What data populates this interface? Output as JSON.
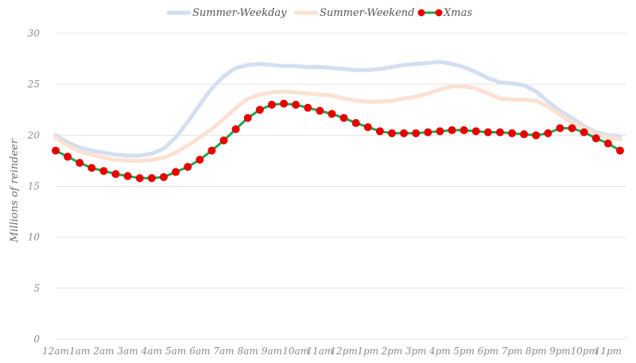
{
  "chart_data": {
    "type": "line",
    "title": "",
    "xlabel": "",
    "ylabel": "Millions of reindeer",
    "ylim": [
      0,
      30
    ],
    "yticks": [
      0,
      5,
      10,
      15,
      20,
      25,
      30
    ],
    "grid": true,
    "legend": "top-center",
    "categories": [
      "12am",
      "1am",
      "2am",
      "3am",
      "4am",
      "5am",
      "6am",
      "7am",
      "8am",
      "9am",
      "10am",
      "11am",
      "12pm",
      "1pm",
      "2pm",
      "3pm",
      "4pm",
      "5pm",
      "6pm",
      "7pm",
      "8pm",
      "9pm",
      "10pm",
      "11pm"
    ],
    "x": [
      0,
      0.5,
      1,
      1.5,
      2,
      2.5,
      3,
      3.5,
      4,
      4.5,
      5,
      5.5,
      6,
      6.5,
      7,
      7.5,
      8,
      8.5,
      9,
      9.5,
      10,
      10.5,
      11,
      11.5,
      12,
      12.5,
      13,
      13.5,
      14,
      14.5,
      15,
      15.5,
      16,
      16.5,
      17,
      17.5,
      18,
      18.5,
      19,
      19.5,
      20,
      20.5,
      21,
      21.5,
      22,
      22.5,
      23,
      23.5
    ],
    "series": [
      {
        "name": "Summer-Weekday",
        "color": "#d4def0",
        "values": [
          20.0,
          19.3,
          18.8,
          18.5,
          18.3,
          18.1,
          18.0,
          18.0,
          18.2,
          18.7,
          19.8,
          21.3,
          23.0,
          24.6,
          25.8,
          26.6,
          26.9,
          27.0,
          26.9,
          26.8,
          26.8,
          26.7,
          26.7,
          26.6,
          26.5,
          26.4,
          26.4,
          26.5,
          26.7,
          26.9,
          27.0,
          27.1,
          27.2,
          27.0,
          26.7,
          26.2,
          25.6,
          25.2,
          25.1,
          24.9,
          24.3,
          23.3,
          22.4,
          21.7,
          20.9,
          20.3,
          20.0,
          19.9
        ]
      },
      {
        "name": "Summer-Weekend",
        "color": "#fbe1d3",
        "values": [
          19.8,
          19.0,
          18.4,
          18.1,
          17.8,
          17.6,
          17.5,
          17.5,
          17.6,
          17.8,
          18.3,
          19.0,
          19.8,
          20.6,
          21.6,
          22.7,
          23.6,
          24.0,
          24.2,
          24.3,
          24.2,
          24.1,
          24.0,
          23.9,
          23.6,
          23.4,
          23.3,
          23.3,
          23.4,
          23.6,
          23.8,
          24.1,
          24.5,
          24.8,
          24.8,
          24.6,
          24.1,
          23.6,
          23.5,
          23.5,
          23.4,
          22.8,
          22.0,
          21.2,
          20.7,
          20.1,
          19.8,
          19.6
        ]
      },
      {
        "name": "Xmas",
        "color": "#1fa64a",
        "marker_color": "#e60000",
        "values": [
          18.5,
          17.9,
          17.3,
          16.8,
          16.5,
          16.2,
          16.0,
          15.8,
          15.8,
          15.9,
          16.4,
          16.9,
          17.6,
          18.5,
          19.5,
          20.6,
          21.7,
          22.5,
          23.0,
          23.1,
          23.0,
          22.7,
          22.4,
          22.1,
          21.7,
          21.2,
          20.8,
          20.4,
          20.2,
          20.2,
          20.2,
          20.3,
          20.4,
          20.5,
          20.5,
          20.4,
          20.3,
          20.3,
          20.2,
          20.1,
          20.0,
          20.2,
          20.7,
          20.7,
          20.3,
          19.7,
          19.2,
          18.5
        ]
      }
    ]
  }
}
